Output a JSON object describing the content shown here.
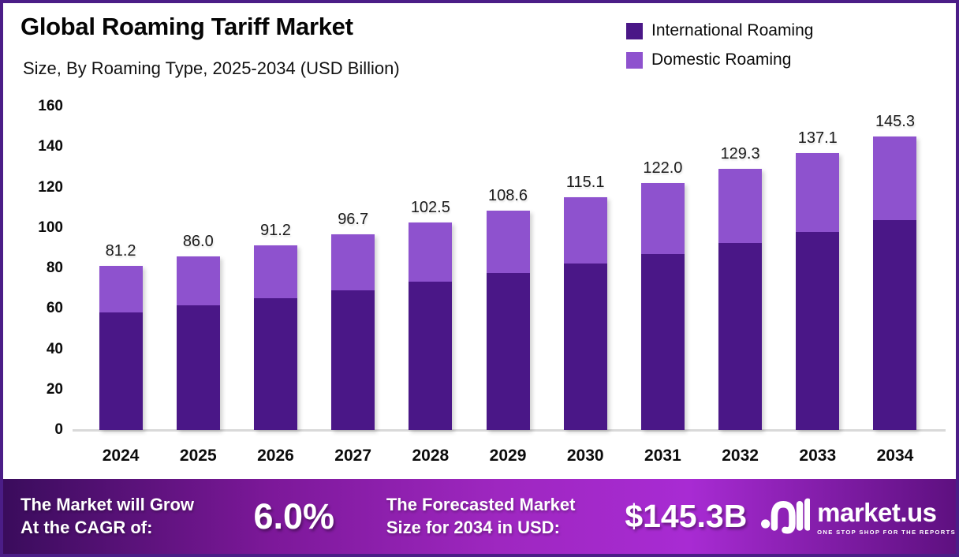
{
  "title": "Global Roaming Tariff Market",
  "subtitle": "Size, By Roaming Type, 2025-2034 (USD Billion)",
  "legend": [
    {
      "label": "International Roaming",
      "color": "#4a1787"
    },
    {
      "label": "Domestic Roaming",
      "color": "#8e52ce"
    }
  ],
  "chart_data": {
    "type": "bar",
    "stacked": true,
    "title": "Global Roaming Tariff Market Size, By Roaming Type, 2025-2034 (USD Billion)",
    "categories": [
      "2024",
      "2025",
      "2026",
      "2027",
      "2028",
      "2029",
      "2030",
      "2031",
      "2032",
      "2033",
      "2034"
    ],
    "series": [
      {
        "name": "International Roaming",
        "color": "#4a1787",
        "values": [
          58.1,
          61.5,
          65.2,
          69.1,
          73.3,
          77.7,
          82.3,
          87.2,
          92.5,
          98.0,
          103.9
        ]
      },
      {
        "name": "Domestic Roaming",
        "color": "#8e52ce",
        "values": [
          23.1,
          24.5,
          26.0,
          27.6,
          29.2,
          30.9,
          32.8,
          34.8,
          36.8,
          39.1,
          41.4
        ]
      }
    ],
    "totals": [
      81.2,
      86.0,
      91.2,
      96.7,
      102.5,
      108.6,
      115.1,
      122.0,
      129.3,
      137.1,
      145.3
    ],
    "total_labels": [
      "81.2",
      "86.0",
      "91.2",
      "96.7",
      "102.5",
      "108.6",
      "115.1",
      "122.0",
      "129.3",
      "137.1",
      "145.3"
    ],
    "xlabel": "",
    "ylabel": "",
    "ylim": [
      0,
      160
    ],
    "yticks": [
      0,
      20,
      40,
      60,
      80,
      100,
      120,
      140,
      160
    ],
    "grid": false,
    "legend_position": "top-right"
  },
  "banner": {
    "grow_line1": "The Market will Grow",
    "grow_line2": "At the CAGR of:",
    "cagr_value": "6.0%",
    "forecast_line1": "The Forecasted Market",
    "forecast_line2": "Size for 2034 in USD:",
    "forecast_value": "$145.3B",
    "logo_name": "market.us",
    "logo_tagline": "ONE STOP SHOP FOR THE REPORTS"
  },
  "colors": {
    "frame_border": "#4b1d87",
    "international": "#4a1787",
    "domestic": "#8e52ce",
    "axis_line": "#d9d9d9",
    "banner_gradient_start": "#3a0c5c",
    "banner_gradient_bright": "#a82bd3",
    "banner_gradient_end": "#5e1080"
  }
}
